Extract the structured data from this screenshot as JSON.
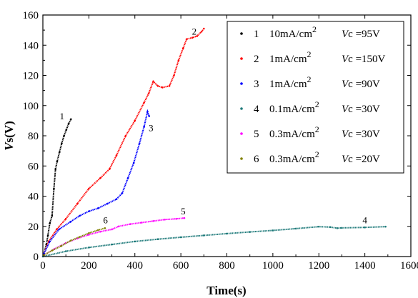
{
  "chart_data": {
    "type": "scatter",
    "xlabel": "Time(s)",
    "ylabel_italic": "V",
    "ylabel_rest": "s(V)",
    "xlim": [
      0,
      1600
    ],
    "ylim": [
      0,
      160
    ],
    "xticks": [
      0,
      200,
      400,
      600,
      800,
      1000,
      1200,
      1400,
      1600
    ],
    "yticks": [
      0,
      20,
      40,
      60,
      80,
      100,
      120,
      140,
      160
    ],
    "xtick_labels": [
      "0",
      "200",
      "400",
      "600",
      "800",
      "1000",
      "1200",
      "1400",
      "1600"
    ],
    "ytick_labels": [
      "0",
      "20",
      "40",
      "60",
      "80",
      "100",
      "120",
      "140",
      "160"
    ],
    "grid": false,
    "legend_position": "top-right",
    "series": [
      {
        "name": "1",
        "current": "10mA/cm",
        "sup": "2",
        "vc_label": "c",
        "vc_value": " =95V",
        "color": "#000000",
        "points": [
          [
            5,
            2
          ],
          [
            15,
            8
          ],
          [
            22,
            14
          ],
          [
            30,
            22
          ],
          [
            40,
            27
          ],
          [
            48,
            45
          ],
          [
            55,
            58
          ],
          [
            62,
            63
          ],
          [
            72,
            69
          ],
          [
            82,
            75
          ],
          [
            92,
            80
          ],
          [
            102,
            84
          ],
          [
            112,
            88
          ],
          [
            122,
            91
          ]
        ],
        "label_at": [
          73,
          91
        ]
      },
      {
        "name": "2",
        "current": "1mA/cm",
        "sup": "2",
        "vc_label": "c",
        "vc_value": " =150V",
        "color": "#ff0000",
        "points": [
          [
            5,
            2
          ],
          [
            25,
            10
          ],
          [
            60,
            18
          ],
          [
            100,
            25
          ],
          [
            150,
            35
          ],
          [
            200,
            45
          ],
          [
            250,
            52
          ],
          [
            290,
            58
          ],
          [
            320,
            67
          ],
          [
            360,
            80
          ],
          [
            400,
            90
          ],
          [
            440,
            102
          ],
          [
            460,
            108
          ],
          [
            480,
            116
          ],
          [
            500,
            113
          ],
          [
            520,
            112
          ],
          [
            550,
            113
          ],
          [
            570,
            120
          ],
          [
            590,
            130
          ],
          [
            610,
            138
          ],
          [
            625,
            144
          ],
          [
            650,
            145
          ],
          [
            670,
            146
          ],
          [
            690,
            149
          ],
          [
            700,
            151
          ]
        ],
        "label_at": [
          648,
          147
        ]
      },
      {
        "name": "3",
        "current": "1mA/cm",
        "sup": "2",
        "vc_label": "c",
        "vc_value": " =90V",
        "color": "#0000ff",
        "points": [
          [
            5,
            2
          ],
          [
            30,
            10
          ],
          [
            70,
            18
          ],
          [
            120,
            23
          ],
          [
            160,
            27
          ],
          [
            200,
            30
          ],
          [
            240,
            32
          ],
          [
            280,
            35
          ],
          [
            320,
            38
          ],
          [
            345,
            42
          ],
          [
            370,
            52
          ],
          [
            395,
            62
          ],
          [
            420,
            75
          ],
          [
            440,
            86
          ],
          [
            455,
            96
          ],
          [
            462,
            93
          ]
        ],
        "label_at": [
          460,
          83
        ]
      },
      {
        "name": "4",
        "current": "0.1mA/cm",
        "sup": "2",
        "vc_label": "c",
        "vc_value": " =30V",
        "color": "#1e7a7a",
        "points": [
          [
            0,
            0
          ],
          [
            100,
            3.5
          ],
          [
            200,
            6
          ],
          [
            300,
            8
          ],
          [
            400,
            10
          ],
          [
            500,
            11.5
          ],
          [
            600,
            12.8
          ],
          [
            700,
            14
          ],
          [
            800,
            15.2
          ],
          [
            900,
            16.3
          ],
          [
            1000,
            17.3
          ],
          [
            1100,
            18.5
          ],
          [
            1200,
            19.8
          ],
          [
            1250,
            19.5
          ],
          [
            1280,
            18.8
          ],
          [
            1300,
            19
          ],
          [
            1400,
            19.3
          ],
          [
            1490,
            19.8
          ]
        ],
        "label_at": [
          1390,
          22
        ]
      },
      {
        "name": "5",
        "current": "0.3mA/cm",
        "sup": "2",
        "vc_label": "c",
        "vc_value": " =30V",
        "color": "#ff00ff",
        "points": [
          [
            5,
            1
          ],
          [
            50,
            5
          ],
          [
            100,
            9
          ],
          [
            150,
            12
          ],
          [
            200,
            14.5
          ],
          [
            250,
            16.5
          ],
          [
            300,
            18
          ],
          [
            330,
            20
          ],
          [
            380,
            21.5
          ],
          [
            430,
            22.5
          ],
          [
            480,
            23.5
          ],
          [
            530,
            24.5
          ],
          [
            580,
            25
          ],
          [
            615,
            25.5
          ]
        ],
        "label_at": [
          600,
          28
        ]
      },
      {
        "name": "6",
        "current": "0.3mA/cm",
        "sup": "2",
        "vc_label": "c",
        "vc_value": " =20V",
        "color": "#808000",
        "points": [
          [
            5,
            1
          ],
          [
            40,
            4
          ],
          [
            80,
            7
          ],
          [
            120,
            10.5
          ],
          [
            160,
            13
          ],
          [
            200,
            15.5
          ],
          [
            240,
            17.5
          ],
          [
            270,
            18.8
          ]
        ],
        "label_at": [
          262,
          22
        ]
      }
    ]
  }
}
